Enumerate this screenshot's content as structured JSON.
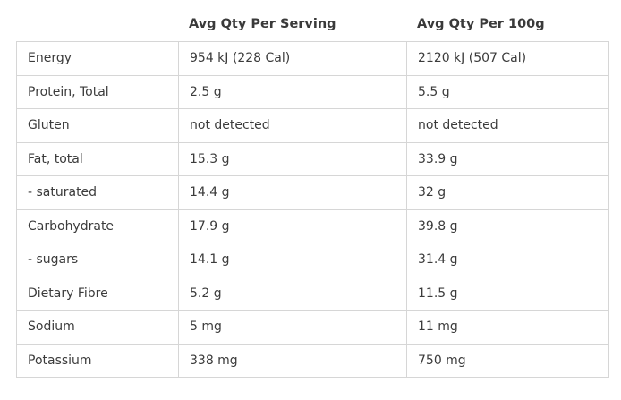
{
  "table": {
    "headers": [
      "",
      "Avg Qty Per Serving",
      "Avg Qty Per 100g"
    ],
    "rows": [
      {
        "nutrient": "Energy",
        "per_serving": "954 kJ (228 Cal)",
        "per_100g": "2120 kJ (507 Cal)"
      },
      {
        "nutrient": "Protein, Total",
        "per_serving": "2.5 g",
        "per_100g": "5.5 g"
      },
      {
        "nutrient": "Gluten",
        "per_serving": "not detected",
        "per_100g": "not detected"
      },
      {
        "nutrient": "Fat, total",
        "per_serving": "15.3 g",
        "per_100g": "33.9 g"
      },
      {
        "nutrient": "- saturated",
        "per_serving": "14.4 g",
        "per_100g": "32 g"
      },
      {
        "nutrient": "Carbohydrate",
        "per_serving": "17.9 g",
        "per_100g": "39.8 g"
      },
      {
        "nutrient": "- sugars",
        "per_serving": "14.1 g",
        "per_100g": "31.4 g"
      },
      {
        "nutrient": "Dietary Fibre",
        "per_serving": "5.2 g",
        "per_100g": "11.5 g"
      },
      {
        "nutrient": "Sodium",
        "per_serving": "5 mg",
        "per_100g": "11 mg"
      },
      {
        "nutrient": "Potassium",
        "per_serving": "338 mg",
        "per_100g": "750 mg"
      }
    ]
  }
}
